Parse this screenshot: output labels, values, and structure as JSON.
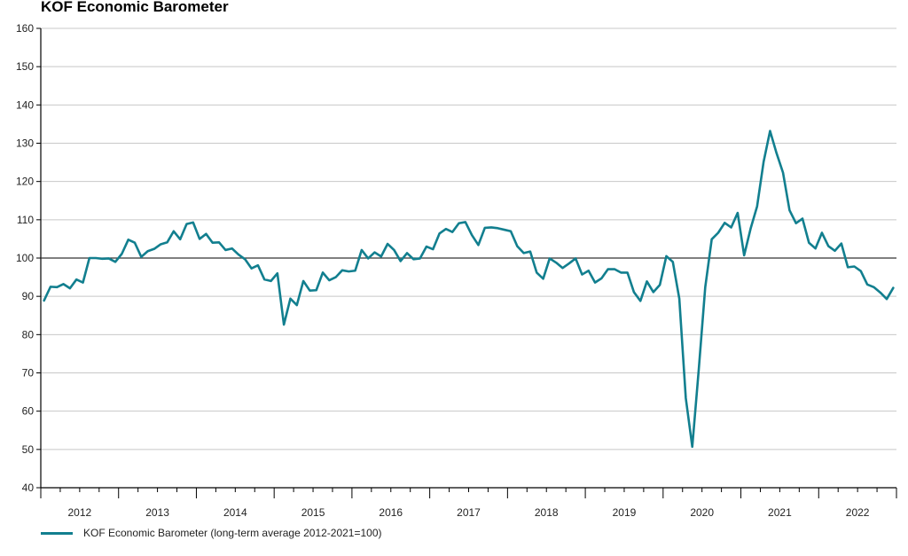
{
  "chart_data": {
    "type": "line",
    "title": "KOF Economic Barometer",
    "xlabel": "",
    "ylabel": "",
    "ylim": [
      40,
      160
    ],
    "yticks": [
      40,
      50,
      60,
      70,
      80,
      90,
      100,
      110,
      120,
      130,
      140,
      150,
      160
    ],
    "xlim": [
      "2012-01",
      "2022-12"
    ],
    "xticks": [
      "2012",
      "2013",
      "2014",
      "2015",
      "2016",
      "2017",
      "2018",
      "2019",
      "2020",
      "2021",
      "2022"
    ],
    "reference_line": 100,
    "grid": "horizontal",
    "legend_position": "bottom-left",
    "series": [
      {
        "name": "KOF Economic Barometer (long-term average 2012-2021=100)",
        "color": "#127f8f",
        "x": [
          "2012-01",
          "2012-02",
          "2012-03",
          "2012-04",
          "2012-05",
          "2012-06",
          "2012-07",
          "2012-08",
          "2012-09",
          "2012-10",
          "2012-11",
          "2012-12",
          "2013-01",
          "2013-02",
          "2013-03",
          "2013-04",
          "2013-05",
          "2013-06",
          "2013-07",
          "2013-08",
          "2013-09",
          "2013-10",
          "2013-11",
          "2013-12",
          "2014-01",
          "2014-02",
          "2014-03",
          "2014-04",
          "2014-05",
          "2014-06",
          "2014-07",
          "2014-08",
          "2014-09",
          "2014-10",
          "2014-11",
          "2014-12",
          "2015-01",
          "2015-02",
          "2015-03",
          "2015-04",
          "2015-05",
          "2015-06",
          "2015-07",
          "2015-08",
          "2015-09",
          "2015-10",
          "2015-11",
          "2015-12",
          "2016-01",
          "2016-02",
          "2016-03",
          "2016-04",
          "2016-05",
          "2016-06",
          "2016-07",
          "2016-08",
          "2016-09",
          "2016-10",
          "2016-11",
          "2016-12",
          "2017-01",
          "2017-02",
          "2017-03",
          "2017-04",
          "2017-05",
          "2017-06",
          "2017-07",
          "2017-08",
          "2017-09",
          "2017-10",
          "2017-11",
          "2017-12",
          "2018-01",
          "2018-02",
          "2018-03",
          "2018-04",
          "2018-05",
          "2018-06",
          "2018-07",
          "2018-08",
          "2018-09",
          "2018-10",
          "2018-11",
          "2018-12",
          "2019-01",
          "2019-02",
          "2019-03",
          "2019-04",
          "2019-05",
          "2019-06",
          "2019-07",
          "2019-08",
          "2019-09",
          "2019-10",
          "2019-11",
          "2019-12",
          "2020-01",
          "2020-02",
          "2020-03",
          "2020-04",
          "2020-05",
          "2020-06",
          "2020-07",
          "2020-08",
          "2020-09",
          "2020-10",
          "2020-11",
          "2020-12",
          "2021-01",
          "2021-02",
          "2021-03",
          "2021-04",
          "2021-05",
          "2021-06",
          "2021-07",
          "2021-08",
          "2021-09",
          "2021-10",
          "2021-11",
          "2021-12",
          "2022-01",
          "2022-02",
          "2022-03",
          "2022-04",
          "2022-05",
          "2022-06",
          "2022-07",
          "2022-08",
          "2022-09",
          "2022-10",
          "2022-11",
          "2022-12"
        ],
        "values": [
          88.9,
          92.5,
          92.4,
          93.2,
          92.1,
          94.4,
          93.6,
          100.0,
          100.0,
          99.8,
          99.9,
          99.0,
          101.1,
          104.8,
          104.0,
          100.3,
          101.8,
          102.4,
          103.6,
          104.1,
          107.0,
          104.9,
          108.9,
          109.3,
          105.0,
          106.3,
          104.0,
          104.1,
          102.1,
          102.5,
          100.9,
          99.7,
          97.3,
          98.1,
          94.4,
          94.0,
          96.0,
          82.6,
          89.4,
          87.7,
          94.0,
          91.5,
          91.6,
          96.2,
          94.2,
          95.0,
          96.8,
          96.5,
          96.7,
          102.1,
          99.9,
          101.5,
          100.4,
          103.7,
          102.1,
          99.2,
          101.3,
          99.7,
          99.9,
          103.0,
          102.3,
          106.4,
          107.6,
          106.8,
          109.1,
          109.4,
          106.0,
          103.4,
          107.9,
          108.0,
          107.8,
          107.4,
          107.0,
          103.1,
          101.3,
          101.7,
          96.2,
          94.6,
          99.9,
          98.8,
          97.4,
          98.6,
          99.9,
          95.7,
          96.7,
          93.6,
          94.7,
          97.1,
          97.1,
          96.2,
          96.2,
          91.1,
          88.8,
          93.9,
          91.1,
          93.0,
          100.5,
          99.0,
          89.4,
          63.4,
          50.7,
          70.9,
          92.4,
          104.9,
          106.6,
          109.2,
          108.0,
          111.8,
          100.7,
          107.7,
          113.5,
          125.1,
          133.2,
          127.4,
          122.3,
          112.5,
          109.1,
          110.3,
          104.0,
          102.5,
          106.6,
          103.1,
          101.9,
          103.8,
          97.6,
          97.8,
          96.6,
          93.1,
          92.4,
          91.0,
          89.3,
          92.2
        ]
      }
    ]
  }
}
